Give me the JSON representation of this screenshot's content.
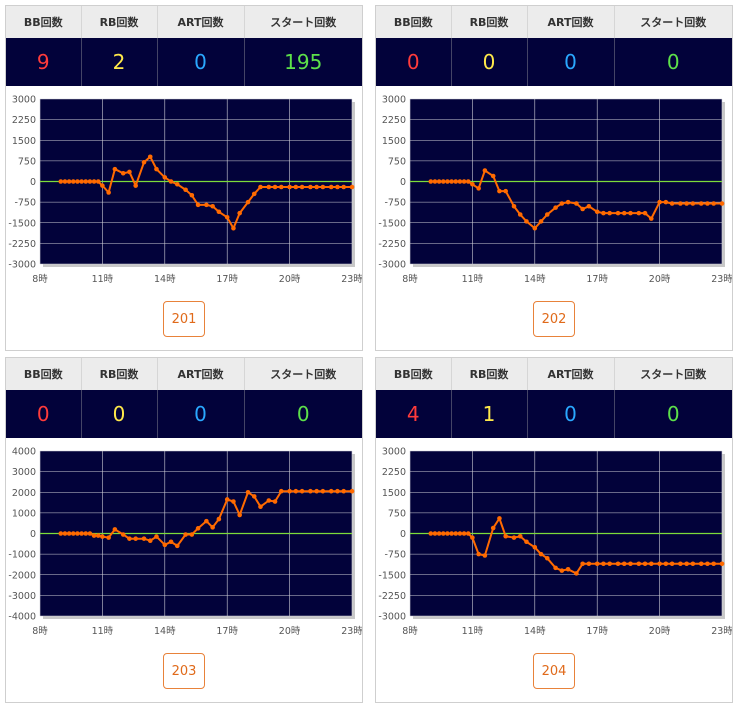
{
  "headers": {
    "bb": "BB回数",
    "rb": "RB回数",
    "art": "ART回数",
    "start": "スタート回数"
  },
  "colors": {
    "bb": "#ff3b3b",
    "rb": "#ffe94a",
    "art": "#2aa8ff",
    "start": "#5de14a",
    "plot_bg": "#02023a",
    "line": "#ff6a00",
    "zero": "#7ddc3a"
  },
  "machines": [
    {
      "id": "201",
      "bb": "9",
      "rb": "2",
      "art": "0",
      "start": "195"
    },
    {
      "id": "202",
      "bb": "0",
      "rb": "0",
      "art": "0",
      "start": "0"
    },
    {
      "id": "203",
      "bb": "0",
      "rb": "0",
      "art": "0",
      "start": "0"
    },
    {
      "id": "204",
      "bb": "4",
      "rb": "1",
      "art": "0",
      "start": "0"
    }
  ],
  "chart_data": [
    {
      "type": "line",
      "title": "",
      "xlabel": "",
      "ylabel": "",
      "grid": true,
      "x_ticks": [
        "8時",
        "11時",
        "14時",
        "17時",
        "20時",
        "23時"
      ],
      "x_tick_values": [
        8,
        11,
        14,
        17,
        20,
        23
      ],
      "xlim": [
        8,
        23
      ],
      "ylim": [
        -3000,
        3000
      ],
      "y_ticks": [
        3000,
        2250,
        1500,
        750,
        0,
        -750,
        -1500,
        -2250,
        -3000
      ],
      "series": [
        {
          "x": [
            9,
            9.2,
            9.4,
            9.6,
            9.8,
            10,
            10.2,
            10.4,
            10.6,
            10.8,
            11,
            11.3,
            11.6,
            12,
            12.3,
            12.6,
            13,
            13.3,
            13.6,
            14,
            14.3,
            14.6,
            15,
            15.3,
            15.6,
            16,
            16.3,
            16.6,
            17,
            17.3,
            17.6,
            18,
            18.3,
            18.6,
            19,
            19.3,
            19.6,
            20,
            20.3,
            20.6,
            21,
            21.3,
            21.6,
            22,
            22.3,
            22.6,
            23
          ],
          "y": [
            0,
            0,
            0,
            0,
            0,
            0,
            0,
            0,
            0,
            0,
            -150,
            -400,
            450,
            300,
            350,
            -150,
            700,
            900,
            450,
            150,
            0,
            -100,
            -300,
            -500,
            -850,
            -850,
            -900,
            -1100,
            -1300,
            -1700,
            -1150,
            -750,
            -450,
            -200,
            -200,
            -200,
            -200,
            -200,
            -200,
            -200,
            -200,
            -200,
            -200,
            -200,
            -200,
            -200,
            -200
          ]
        }
      ]
    },
    {
      "type": "line",
      "title": "",
      "xlabel": "",
      "ylabel": "",
      "grid": true,
      "x_ticks": [
        "8時",
        "11時",
        "14時",
        "17時",
        "20時",
        "23時"
      ],
      "x_tick_values": [
        8,
        11,
        14,
        17,
        20,
        23
      ],
      "xlim": [
        8,
        23
      ],
      "ylim": [
        -3000,
        3000
      ],
      "y_ticks": [
        3000,
        2250,
        1500,
        750,
        0,
        -750,
        -1500,
        -2250,
        -3000
      ],
      "series": [
        {
          "x": [
            9,
            9.2,
            9.4,
            9.6,
            9.8,
            10,
            10.2,
            10.4,
            10.6,
            10.8,
            11,
            11.3,
            11.6,
            12,
            12.3,
            12.6,
            13,
            13.3,
            13.6,
            14,
            14.3,
            14.6,
            15,
            15.3,
            15.6,
            16,
            16.3,
            16.6,
            17,
            17.3,
            17.6,
            18,
            18.3,
            18.6,
            19,
            19.3,
            19.6,
            20,
            20.3,
            20.6,
            21,
            21.3,
            21.6,
            22,
            22.3,
            22.6,
            23
          ],
          "y": [
            0,
            0,
            0,
            0,
            0,
            0,
            0,
            0,
            0,
            0,
            -100,
            -250,
            400,
            200,
            -350,
            -350,
            -900,
            -1200,
            -1450,
            -1700,
            -1450,
            -1200,
            -950,
            -800,
            -750,
            -800,
            -1000,
            -900,
            -1100,
            -1150,
            -1150,
            -1150,
            -1150,
            -1150,
            -1150,
            -1150,
            -1350,
            -750,
            -750,
            -800,
            -800,
            -800,
            -800,
            -800,
            -800,
            -800,
            -800
          ]
        }
      ]
    },
    {
      "type": "line",
      "title": "",
      "xlabel": "",
      "ylabel": "",
      "grid": true,
      "x_ticks": [
        "8時",
        "11時",
        "14時",
        "17時",
        "20時",
        "23時"
      ],
      "x_tick_values": [
        8,
        11,
        14,
        17,
        20,
        23
      ],
      "xlim": [
        8,
        23
      ],
      "ylim": [
        -4000,
        4000
      ],
      "y_ticks": [
        4000,
        3000,
        2000,
        1000,
        0,
        -1000,
        -2000,
        -3000,
        -4000
      ],
      "series": [
        {
          "x": [
            9,
            9.2,
            9.4,
            9.6,
            9.8,
            10,
            10.2,
            10.4,
            10.6,
            10.8,
            11,
            11.3,
            11.6,
            12,
            12.3,
            12.6,
            13,
            13.3,
            13.6,
            14,
            14.3,
            14.6,
            15,
            15.3,
            15.6,
            16,
            16.3,
            16.6,
            17,
            17.3,
            17.6,
            18,
            18.3,
            18.6,
            19,
            19.3,
            19.6,
            20,
            20.3,
            20.6,
            21,
            21.3,
            21.6,
            22,
            22.3,
            22.6,
            23
          ],
          "y": [
            0,
            0,
            0,
            0,
            0,
            0,
            0,
            0,
            -100,
            -100,
            -150,
            -200,
            200,
            -50,
            -250,
            -250,
            -250,
            -350,
            -150,
            -550,
            -400,
            -600,
            -50,
            -50,
            250,
            600,
            300,
            700,
            1650,
            1550,
            900,
            2000,
            1800,
            1300,
            1600,
            1550,
            2050,
            2050,
            2050,
            2050,
            2050,
            2050,
            2050,
            2050,
            2050,
            2050,
            2050
          ]
        }
      ]
    },
    {
      "type": "line",
      "title": "",
      "xlabel": "",
      "ylabel": "",
      "grid": true,
      "x_ticks": [
        "8時",
        "11時",
        "14時",
        "17時",
        "20時",
        "23時"
      ],
      "x_tick_values": [
        8,
        11,
        14,
        17,
        20,
        23
      ],
      "xlim": [
        8,
        23
      ],
      "ylim": [
        -3000,
        3000
      ],
      "y_ticks": [
        3000,
        2250,
        1500,
        750,
        0,
        -750,
        -1500,
        -2250,
        -3000
      ],
      "series": [
        {
          "x": [
            9,
            9.2,
            9.4,
            9.6,
            9.8,
            10,
            10.2,
            10.4,
            10.6,
            10.8,
            11,
            11.3,
            11.6,
            12,
            12.3,
            12.6,
            13,
            13.3,
            13.6,
            14,
            14.3,
            14.6,
            15,
            15.3,
            15.6,
            16,
            16.3,
            16.6,
            17,
            17.3,
            17.6,
            18,
            18.3,
            18.6,
            19,
            19.3,
            19.6,
            20,
            20.3,
            20.6,
            21,
            21.3,
            21.6,
            22,
            22.3,
            22.6,
            23
          ],
          "y": [
            0,
            0,
            0,
            0,
            0,
            0,
            0,
            0,
            0,
            0,
            -150,
            -750,
            -800,
            200,
            550,
            -100,
            -150,
            -100,
            -300,
            -500,
            -750,
            -900,
            -1250,
            -1350,
            -1300,
            -1450,
            -1100,
            -1100,
            -1100,
            -1100,
            -1100,
            -1100,
            -1100,
            -1100,
            -1100,
            -1100,
            -1100,
            -1100,
            -1100,
            -1100,
            -1100,
            -1100,
            -1100,
            -1100,
            -1100,
            -1100,
            -1100
          ]
        }
      ]
    }
  ]
}
